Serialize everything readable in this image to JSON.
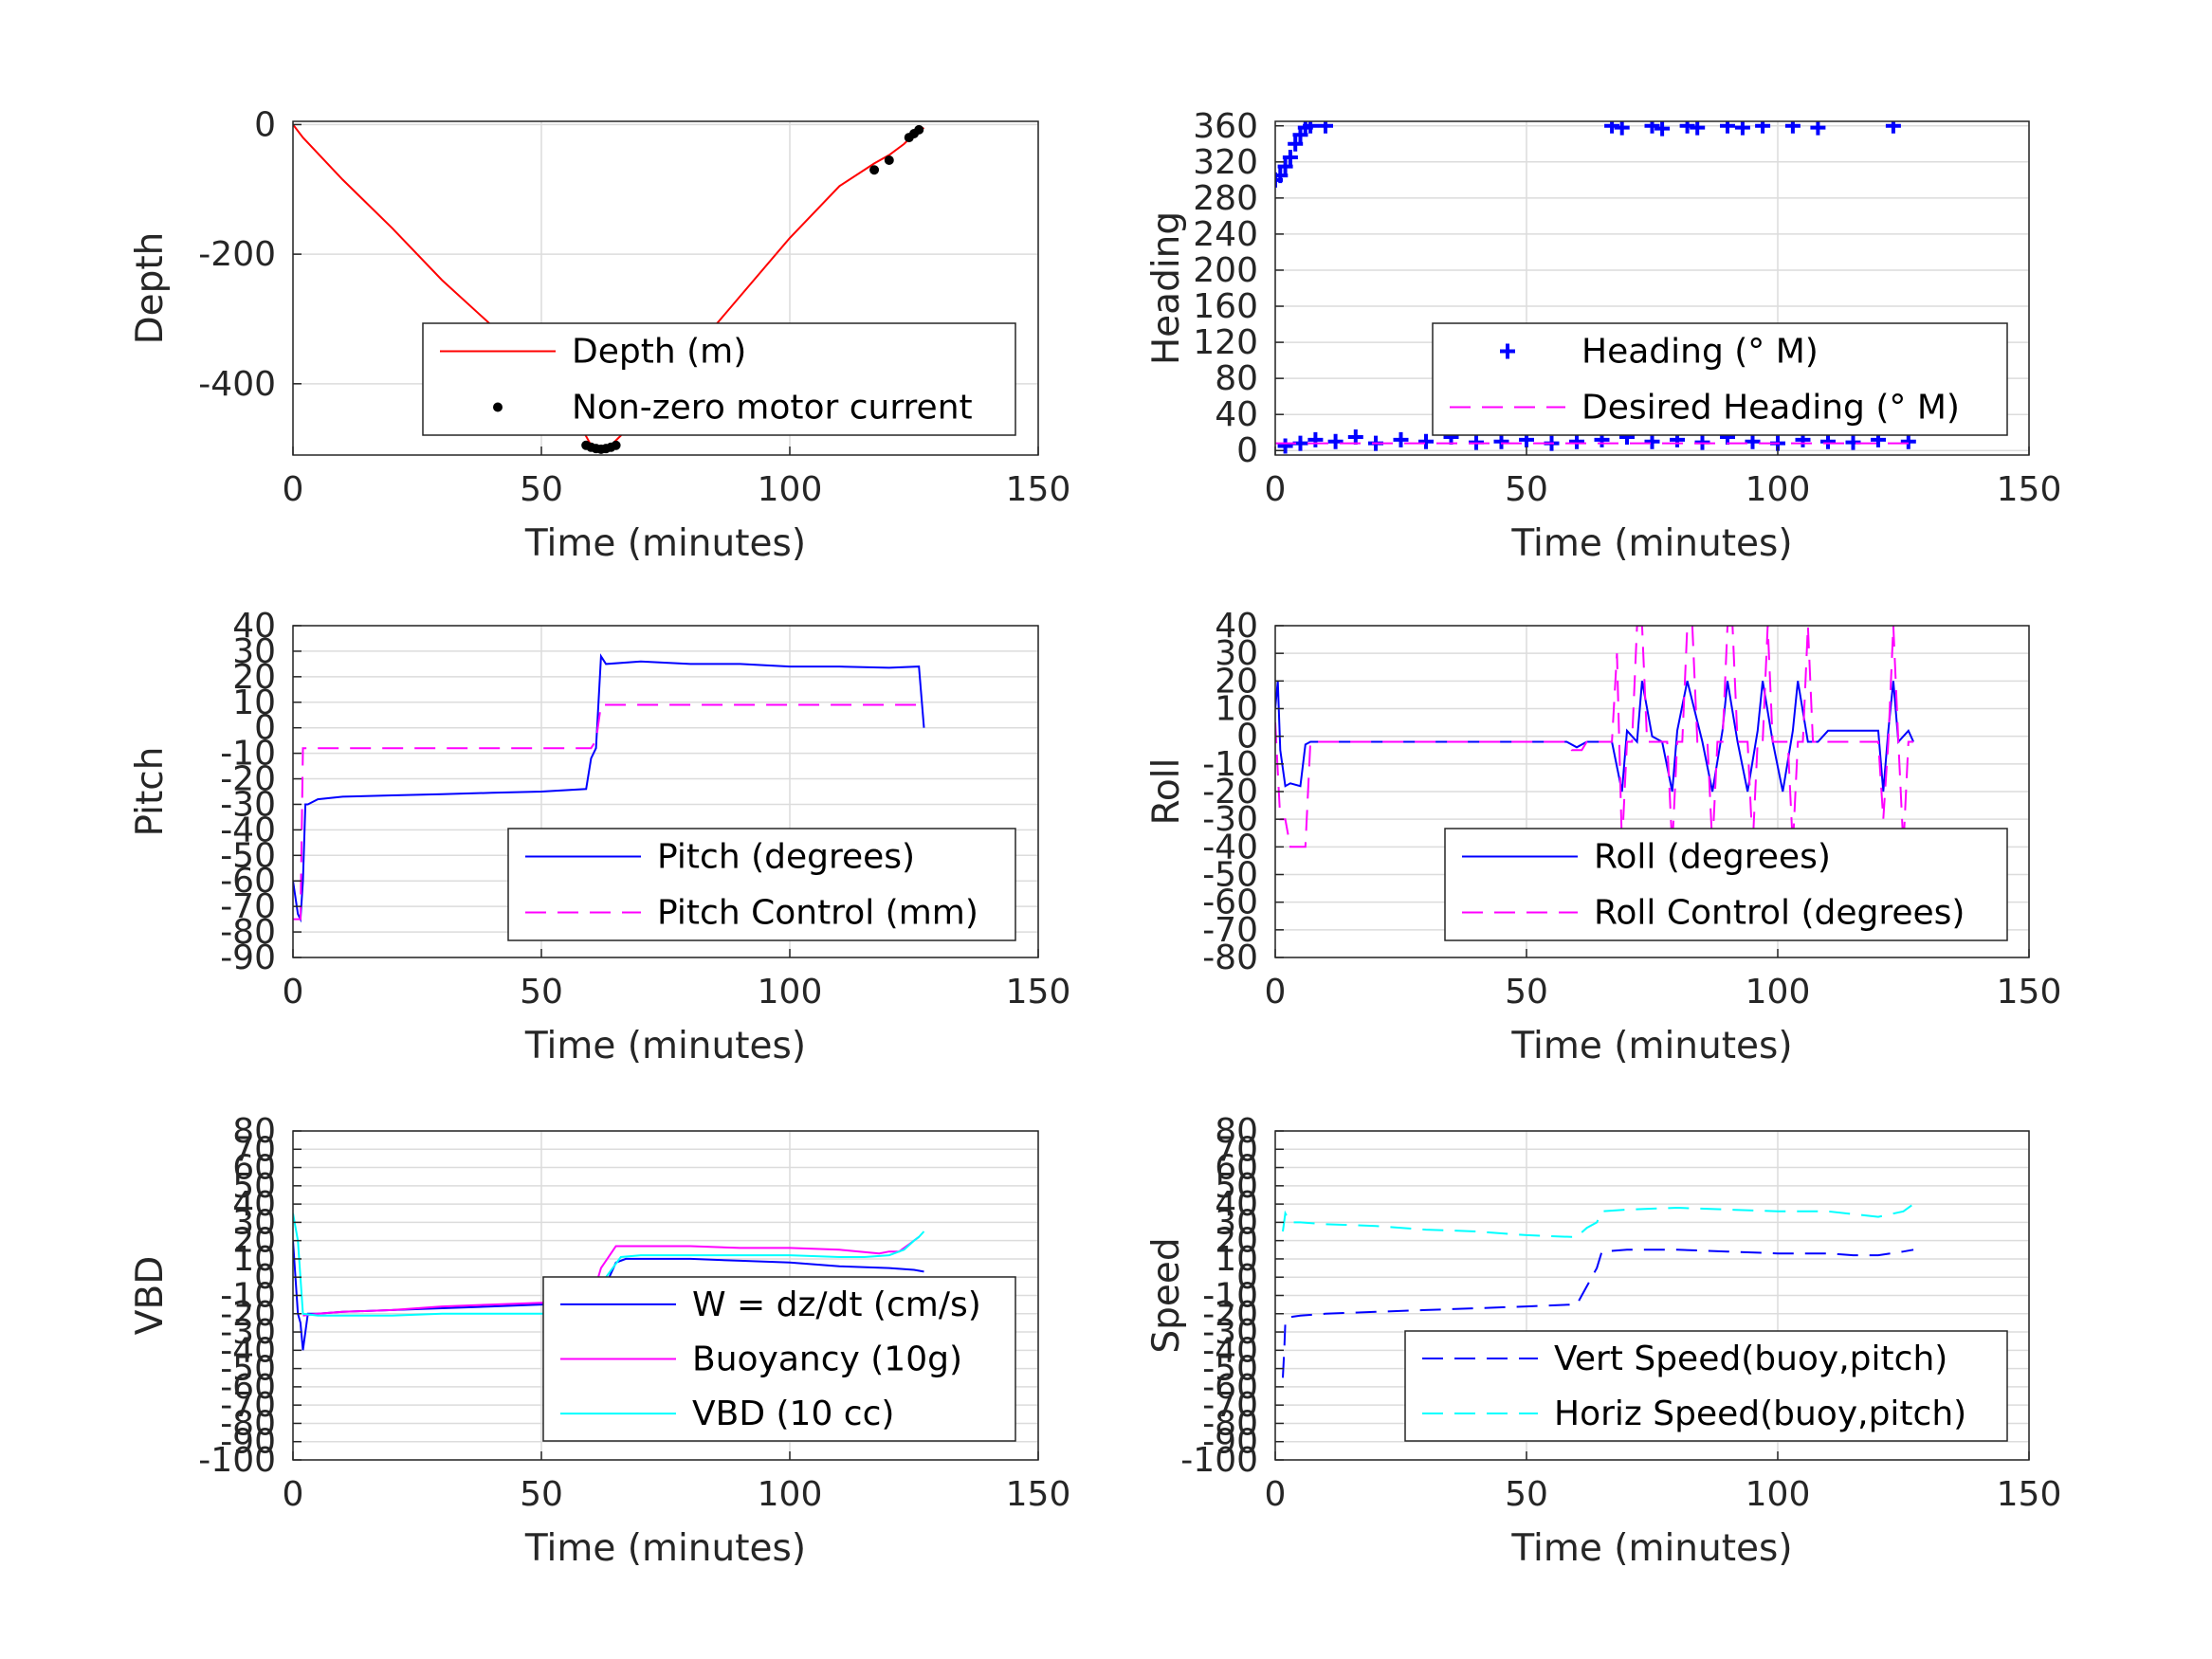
{
  "chart_data": [
    {
      "type": "line",
      "id": "depth",
      "xlabel": "Time (minutes)",
      "ylabel": "Depth",
      "xlim": [
        0,
        150
      ],
      "ylim": [
        -510,
        5
      ],
      "xticks": [
        0,
        50,
        100,
        150
      ],
      "yticks": [
        -400,
        -200,
        0
      ],
      "xtick_labels": [
        "0",
        "50",
        "100",
        "150"
      ],
      "ytick_labels": [
        "-400",
        "-200",
        "0"
      ],
      "grid": true,
      "legend_position": "bottom-right",
      "series": [
        {
          "name": "Depth (m)",
          "color": "#ff0000",
          "style": "solid",
          "x": [
            0,
            2,
            10,
            20,
            30,
            40,
            50,
            55,
            60,
            62,
            64,
            66,
            70,
            80,
            90,
            100,
            110,
            117,
            120,
            123,
            125,
            127
          ],
          "y": [
            0,
            -20,
            -85,
            -160,
            -240,
            -310,
            -385,
            -425,
            -495,
            -500,
            -495,
            -480,
            -440,
            -355,
            -265,
            -175,
            -95,
            -60,
            -47,
            -30,
            -15,
            -5
          ]
        },
        {
          "name": "Non-zero motor current",
          "color": "#000000",
          "style": "marker-dot",
          "x": [
            59,
            60,
            61,
            62,
            63,
            64,
            65,
            117,
            120,
            124,
            125,
            126
          ],
          "y": [
            -495,
            -498,
            -500,
            -501,
            -500,
            -498,
            -495,
            -70,
            -55,
            -20,
            -14,
            -8
          ]
        }
      ]
    },
    {
      "type": "scatter",
      "id": "heading",
      "xlabel": "Time (minutes)",
      "ylabel": "Heading",
      "xlim": [
        0,
        150
      ],
      "ylim": [
        -5,
        365
      ],
      "xticks": [
        0,
        50,
        100,
        150
      ],
      "yticks": [
        0,
        40,
        80,
        120,
        160,
        200,
        240,
        280,
        320,
        360
      ],
      "xtick_labels": [
        "0",
        "50",
        "100",
        "150"
      ],
      "ytick_labels": [
        "0",
        "40",
        "80",
        "120",
        "160",
        "200",
        "240",
        "280",
        "320",
        "360"
      ],
      "grid": true,
      "legend_position": "bottom-right",
      "series": [
        {
          "name": "Heading (° M)",
          "color": "#0000ff",
          "style": "marker-plus",
          "x": [
            0,
            1,
            2,
            3,
            4,
            5,
            6,
            7,
            10,
            67,
            69,
            75,
            77,
            82,
            84,
            90,
            93,
            97,
            103,
            108,
            123,
            2,
            5,
            8,
            12,
            16,
            20,
            25,
            30,
            35,
            40,
            45,
            50,
            55,
            60,
            65,
            70,
            75,
            80,
            85,
            90,
            95,
            100,
            105,
            110,
            115,
            120,
            124,
            126
          ],
          "y": [
            300,
            305,
            315,
            325,
            340,
            350,
            358,
            360,
            360,
            360,
            358,
            360,
            357,
            360,
            358,
            360,
            358,
            360,
            360,
            358,
            360,
            5,
            8,
            12,
            10,
            15,
            8,
            12,
            10,
            15,
            9,
            10,
            12,
            8,
            10,
            12,
            15,
            10,
            12,
            9,
            15,
            10,
            8,
            12,
            10,
            9,
            12,
            25,
            10
          ]
        },
        {
          "name": "Desired Heading (° M)",
          "color": "#ff00ff",
          "style": "dashed",
          "x": [
            0,
            127
          ],
          "y": [
            8,
            8
          ]
        }
      ]
    },
    {
      "type": "line",
      "id": "pitch",
      "xlabel": "Time (minutes)",
      "ylabel": "Pitch",
      "xlim": [
        0,
        150
      ],
      "ylim": [
        -90,
        40
      ],
      "xticks": [
        0,
        50,
        100,
        150
      ],
      "yticks": [
        -90,
        -80,
        -70,
        -60,
        -50,
        -40,
        -30,
        -20,
        -10,
        0,
        10,
        20,
        30,
        40
      ],
      "xtick_labels": [
        "0",
        "50",
        "100",
        "150"
      ],
      "ytick_labels": [
        "-90",
        "-80",
        "-70",
        "-60",
        "-50",
        "-40",
        "-30",
        "-20",
        "-10",
        "0",
        "10",
        "20",
        "30",
        "40"
      ],
      "grid": true,
      "legend_position": "bottom-right",
      "series": [
        {
          "name": "Pitch (degrees)",
          "color": "#0000ff",
          "style": "solid",
          "x": [
            0,
            1,
            1.5,
            2,
            2.5,
            3,
            5,
            10,
            20,
            30,
            40,
            50,
            59,
            60,
            61,
            62,
            63,
            70,
            80,
            90,
            100,
            110,
            120,
            126,
            127
          ],
          "y": [
            -60,
            -73,
            -75,
            -60,
            -30,
            -30,
            -28,
            -27,
            -26.5,
            -26,
            -25.5,
            -25,
            -24,
            -12,
            -8,
            28,
            25,
            26,
            25,
            25,
            24,
            24,
            23.5,
            24,
            0
          ]
        },
        {
          "name": "Pitch Control (mm)",
          "color": "#ff00ff",
          "style": "dashed",
          "x": [
            0,
            1.5,
            2,
            60,
            61,
            62,
            70,
            127
          ],
          "y": [
            -75,
            -75,
            -8,
            -8,
            -5,
            9,
            9,
            9
          ]
        }
      ]
    },
    {
      "type": "line",
      "id": "roll",
      "xlabel": "Time (minutes)",
      "ylabel": "Roll",
      "xlim": [
        0,
        150
      ],
      "ylim": [
        -80,
        40
      ],
      "xticks": [
        0,
        50,
        100,
        150
      ],
      "yticks": [
        -80,
        -70,
        -60,
        -50,
        -40,
        -30,
        -20,
        -10,
        0,
        10,
        20,
        30,
        40
      ],
      "xtick_labels": [
        "0",
        "50",
        "100",
        "150"
      ],
      "ytick_labels": [
        "-80",
        "-70",
        "-60",
        "-50",
        "-40",
        "-30",
        "-20",
        "-10",
        "0",
        "10",
        "20",
        "30",
        "40"
      ],
      "grid": true,
      "legend_position": "bottom-right",
      "series": [
        {
          "name": "Roll (degrees)",
          "color": "#0000ff",
          "style": "solid",
          "x": [
            0,
            0.5,
            1,
            2,
            3,
            5,
            6,
            7,
            20,
            40,
            58,
            60,
            62,
            67,
            69,
            70,
            72,
            73,
            75,
            77,
            79,
            80,
            82,
            85,
            87,
            89,
            90,
            92,
            94,
            96,
            97,
            99,
            101,
            103,
            104,
            106,
            108,
            110,
            120,
            121,
            122,
            123,
            124,
            126,
            127
          ],
          "y": [
            10,
            20,
            -5,
            -18,
            -17,
            -18,
            -3,
            -2,
            -2,
            -2,
            -2,
            -4,
            -2,
            -2,
            -20,
            2,
            -2,
            20,
            0,
            -2,
            -20,
            2,
            20,
            -2,
            -20,
            2,
            20,
            -2,
            -20,
            2,
            20,
            -2,
            -20,
            2,
            20,
            -2,
            -2,
            2,
            2,
            -20,
            2,
            20,
            -2,
            2,
            -2
          ]
        },
        {
          "name": "Roll Control (degrees)",
          "color": "#ff00ff",
          "style": "dashed",
          "x": [
            0,
            1,
            2,
            3,
            4,
            5,
            6,
            7,
            20,
            58,
            59,
            61,
            62,
            67,
            68,
            69,
            70,
            71,
            72,
            73,
            74,
            75,
            76,
            78,
            79,
            80,
            81,
            82,
            83,
            84,
            86,
            87,
            88,
            89,
            90,
            91,
            92,
            94,
            95,
            96,
            97,
            98,
            99,
            100,
            102,
            103,
            104,
            105,
            106,
            107,
            108,
            110,
            120,
            121,
            122,
            123,
            124,
            125,
            126,
            127
          ],
          "y": [
            5,
            -30,
            -30,
            -40,
            -40,
            -40,
            -40,
            -2,
            -2,
            -2,
            -5,
            -5,
            -2,
            -2,
            30,
            -40,
            -2,
            -2,
            40,
            40,
            -2,
            -2,
            -2,
            -2,
            -40,
            -2,
            -2,
            40,
            40,
            -2,
            -2,
            -40,
            -2,
            -2,
            40,
            40,
            -2,
            -2,
            -40,
            -2,
            -2,
            40,
            -2,
            -2,
            -2,
            -40,
            -2,
            -2,
            40,
            -2,
            -2,
            -2,
            -2,
            -30,
            -2,
            40,
            -2,
            -40,
            -2,
            -2
          ]
        }
      ]
    },
    {
      "type": "line",
      "id": "vbd",
      "xlabel": "Time (minutes)",
      "ylabel": "VBD",
      "xlim": [
        0,
        150
      ],
      "ylim": [
        -100,
        80
      ],
      "xticks": [
        0,
        50,
        100,
        150
      ],
      "yticks": [
        -100,
        -90,
        -80,
        -70,
        -60,
        -50,
        -40,
        -30,
        -20,
        -10,
        0,
        10,
        20,
        30,
        40,
        50,
        60,
        70,
        80
      ],
      "xtick_labels": [
        "0",
        "50",
        "100",
        "150"
      ],
      "ytick_labels": [
        "-100",
        "-90",
        "-80",
        "-70",
        "-60",
        "-50",
        "-40",
        "-30",
        "-20",
        "-10",
        "0",
        "10",
        "20",
        "30",
        "40",
        "50",
        "60",
        "70",
        "80"
      ],
      "grid": true,
      "legend_position": "bottom-right",
      "series": [
        {
          "name": "W = dz/dt (cm/s)",
          "color": "#0000ff",
          "style": "solid",
          "x": [
            0,
            0.5,
            1,
            1.5,
            2,
            3,
            5,
            10,
            20,
            30,
            40,
            50,
            60,
            62,
            65,
            67,
            70,
            80,
            90,
            100,
            110,
            120,
            125,
            127
          ],
          "y": [
            20,
            0,
            -20,
            -25,
            -40,
            -20,
            -20,
            -19,
            -18,
            -17,
            -16,
            -15,
            -15,
            -10,
            8,
            10,
            10,
            10,
            9,
            8,
            6,
            5,
            4,
            3
          ]
        },
        {
          "name": "Buoyancy (10g)",
          "color": "#ff00ff",
          "style": "solid",
          "x": [
            2,
            5,
            10,
            20,
            30,
            40,
            50,
            60,
            62,
            65,
            70,
            80,
            90,
            100,
            110,
            118,
            120,
            122,
            124,
            126
          ],
          "y": [
            -21,
            -20,
            -19,
            -18,
            -16,
            -15,
            -14,
            -13,
            5,
            17,
            17,
            17,
            16,
            16,
            15,
            13,
            14,
            14,
            18,
            22
          ]
        },
        {
          "name": "VBD (10 cc)",
          "color": "#00ffff",
          "style": "solid",
          "x": [
            0,
            1,
            2,
            5,
            10,
            20,
            30,
            40,
            50,
            60,
            63,
            66,
            70,
            80,
            90,
            100,
            110,
            115,
            120,
            123,
            125,
            126,
            127
          ],
          "y": [
            35,
            20,
            -20,
            -21,
            -21,
            -21,
            -20,
            -20,
            -20,
            -20,
            0,
            11,
            12,
            12,
            12,
            12,
            11,
            11,
            12,
            15,
            20,
            22,
            25
          ]
        }
      ]
    },
    {
      "type": "line",
      "id": "speed",
      "xlabel": "Time (minutes)",
      "ylabel": "Speed",
      "xlim": [
        0,
        150
      ],
      "ylim": [
        -100,
        80
      ],
      "xticks": [
        0,
        50,
        100,
        150
      ],
      "yticks": [
        -100,
        -90,
        -80,
        -70,
        -60,
        -50,
        -40,
        -30,
        -20,
        -10,
        0,
        10,
        20,
        30,
        40,
        50,
        60,
        70,
        80
      ],
      "xtick_labels": [
        "0",
        "50",
        "100",
        "150"
      ],
      "ytick_labels": [
        "-100",
        "-90",
        "-80",
        "-70",
        "-60",
        "-50",
        "-40",
        "-30",
        "-20",
        "-10",
        "0",
        "10",
        "20",
        "30",
        "40",
        "50",
        "60",
        "70",
        "80"
      ],
      "grid": true,
      "legend_position": "bottom-right",
      "series": [
        {
          "name": "Vert Speed(buoy,pitch)",
          "color": "#0000ff",
          "style": "dashed",
          "x": [
            1.5,
            1.8,
            2,
            2.5,
            5,
            10,
            20,
            30,
            40,
            50,
            59,
            60,
            62,
            64,
            65,
            70,
            80,
            90,
            100,
            110,
            115,
            120,
            125,
            127
          ],
          "y": [
            -55,
            -40,
            -25,
            -22,
            -21,
            -20,
            -19,
            -18,
            -17,
            -16,
            -15,
            -15,
            -5,
            5,
            14,
            15,
            15,
            14,
            13,
            13,
            12,
            12,
            14,
            15
          ]
        },
        {
          "name": "Horiz Speed(buoy,pitch)",
          "color": "#00ffff",
          "style": "dashed",
          "x": [
            1.5,
            2,
            3,
            5,
            10,
            20,
            30,
            40,
            50,
            59,
            60,
            62,
            64,
            65,
            70,
            80,
            90,
            100,
            110,
            120,
            125,
            127
          ],
          "y": [
            25,
            35,
            30,
            30,
            29,
            28,
            26,
            25,
            23,
            22,
            22,
            27,
            30,
            36,
            37,
            38,
            37,
            36,
            36,
            33,
            36,
            40
          ]
        }
      ]
    }
  ]
}
